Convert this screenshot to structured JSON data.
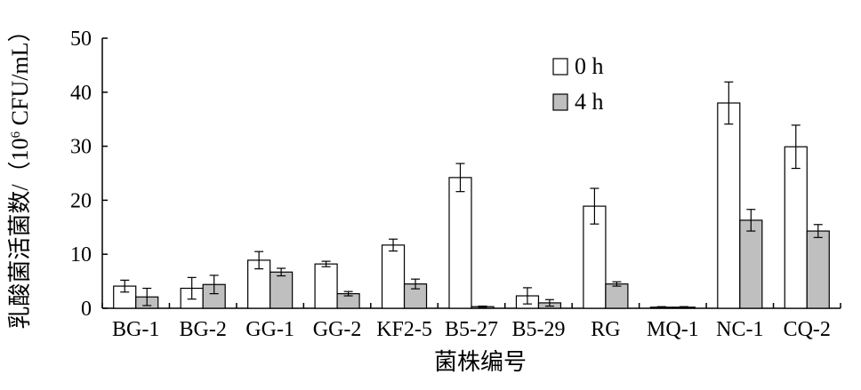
{
  "chart_data": {
    "type": "bar",
    "title": "",
    "xlabel": "菌株编号",
    "ylabel": "乳酸菌活菌数/（10⁶ CFU/mL）",
    "ylabel_main": "乳酸菌活菌数/（10",
    "ylabel_sup": "6",
    "ylabel_unit": " CFU/mL）",
    "ylim": [
      0,
      50
    ],
    "yticks": [
      "0",
      "10",
      "20",
      "30",
      "40",
      "50"
    ],
    "categories": [
      "BG-1",
      "BG-2",
      "GG-1",
      "GG-2",
      "KF2-5",
      "B5-27",
      "B5-29",
      "RG",
      "MQ-1",
      "NC-1",
      "CQ-2"
    ],
    "series": [
      {
        "name": "0 h",
        "fill": "#ffffff",
        "values": [
          4.1,
          3.7,
          8.9,
          8.2,
          11.7,
          24.2,
          2.3,
          18.9,
          0.2,
          38.0,
          29.9
        ],
        "errors": [
          1.1,
          2.0,
          1.6,
          0.5,
          1.1,
          2.6,
          1.5,
          3.3,
          0.1,
          3.9,
          4.0
        ]
      },
      {
        "name": "4 h",
        "fill": "#bfbfbf",
        "values": [
          2.1,
          4.4,
          6.7,
          2.7,
          4.5,
          0.3,
          1.0,
          4.5,
          0.2,
          16.3,
          14.3
        ],
        "errors": [
          1.6,
          1.7,
          0.7,
          0.4,
          0.9,
          0.1,
          0.6,
          0.4,
          0.1,
          2.0,
          1.2
        ]
      }
    ],
    "legend_position": "top-right",
    "grid": false
  }
}
